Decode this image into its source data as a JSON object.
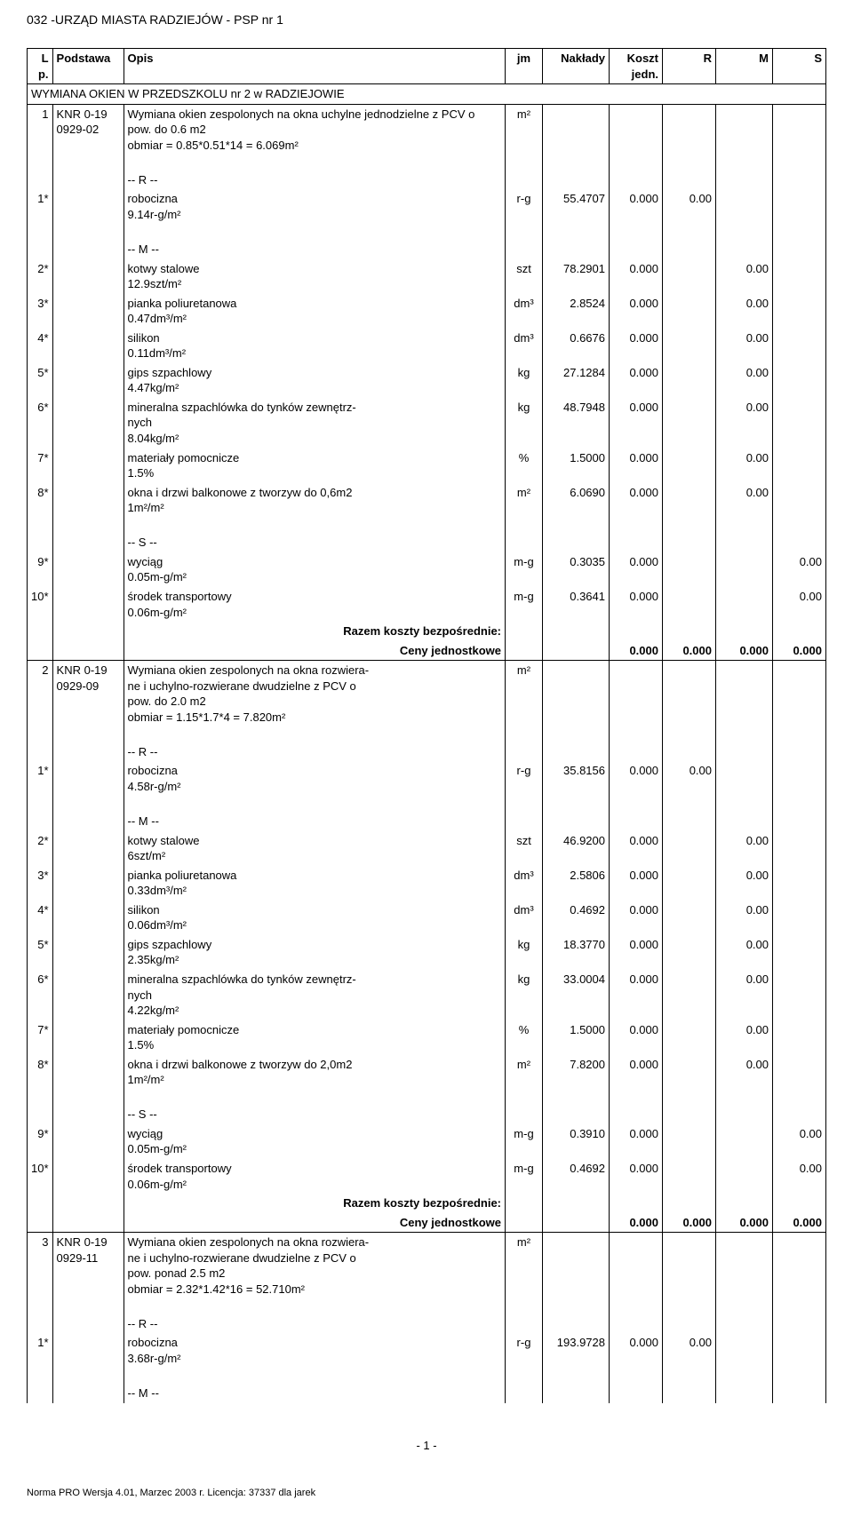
{
  "header": "032 -URZĄD MIASTA RADZIEJÓW - PSP nr 1",
  "columns": {
    "lp": "L p.",
    "podstawa": "Podstawa",
    "opis": "Opis",
    "jm": "jm",
    "naklady": "Nakłady",
    "koszt": "Koszt jedn.",
    "r": "R",
    "m": "M",
    "s": "S"
  },
  "section_title": "WYMIANA OKIEN W PRZEDSZKOLU nr 2 w RADZIEJOWIE",
  "items": [
    {
      "lp": "1",
      "podstawa": "KNR 0-19 0929-02",
      "opis": "Wymiana okien zespolonych na okna uchylne jednodzielne z PCV o pow. do 0.6 m2\nobmiar = 0.85*0.51*14 = 6.069m²",
      "jm": "m²",
      "rows": [
        {
          "sep": "-- R --"
        },
        {
          "lp": "1*",
          "opis": "robocizna\n9.14r-g/m²",
          "jm": "r-g",
          "naklady": "55.4707",
          "koszt": "0.000",
          "r": "0.00"
        },
        {
          "sep": "-- M --"
        },
        {
          "lp": "2*",
          "opis": "kotwy stalowe\n12.9szt/m²",
          "jm": "szt",
          "naklady": "78.2901",
          "koszt": "0.000",
          "m": "0.00"
        },
        {
          "lp": "3*",
          "opis": "pianka poliuretanowa\n0.47dm³/m²",
          "jm": "dm³",
          "naklady": "2.8524",
          "koszt": "0.000",
          "m": "0.00"
        },
        {
          "lp": "4*",
          "opis": "silikon\n0.11dm³/m²",
          "jm": "dm³",
          "naklady": "0.6676",
          "koszt": "0.000",
          "m": "0.00"
        },
        {
          "lp": "5*",
          "opis": "gips szpachlowy\n4.47kg/m²",
          "jm": "kg",
          "naklady": "27.1284",
          "koszt": "0.000",
          "m": "0.00"
        },
        {
          "lp": "6*",
          "opis": "mineralna szpachlówka do tynków zewnętrz-\nnych\n8.04kg/m²",
          "jm": "kg",
          "naklady": "48.7948",
          "koszt": "0.000",
          "m": "0.00"
        },
        {
          "lp": "7*",
          "opis": "materiały pomocnicze\n1.5%",
          "jm": "%",
          "naklady": "1.5000",
          "koszt": "0.000",
          "m": "0.00"
        },
        {
          "lp": "8*",
          "opis": "okna i drzwi balkonowe z tworzyw do 0,6m2\n1m²/m²",
          "jm": "m²",
          "naklady": "6.0690",
          "koszt": "0.000",
          "m": "0.00"
        },
        {
          "sep": "-- S --"
        },
        {
          "lp": "9*",
          "opis": "wyciąg\n0.05m-g/m²",
          "jm": "m-g",
          "naklady": "0.3035",
          "koszt": "0.000",
          "s": "0.00"
        },
        {
          "lp": "10*",
          "opis": "środek transportowy\n0.06m-g/m²",
          "jm": "m-g",
          "naklady": "0.3641",
          "koszt": "0.000",
          "s": "0.00"
        }
      ],
      "razem_label": "Razem koszty bezpośrednie:",
      "ceny_label": "Ceny jednostkowe",
      "ceny": {
        "koszt": "0.000",
        "r": "0.000",
        "m": "0.000",
        "s": "0.000"
      }
    },
    {
      "lp": "2",
      "podstawa": "KNR 0-19 0929-09",
      "opis": "Wymiana okien zespolonych na okna rozwiera-\nne i uchylno-rozwierane dwudzielne z PCV o\npow. do 2.0 m2\nobmiar = 1.15*1.7*4 = 7.820m²",
      "jm": "m²",
      "rows": [
        {
          "sep": "-- R --"
        },
        {
          "lp": "1*",
          "opis": "robocizna\n4.58r-g/m²",
          "jm": "r-g",
          "naklady": "35.8156",
          "koszt": "0.000",
          "r": "0.00"
        },
        {
          "sep": "-- M --"
        },
        {
          "lp": "2*",
          "opis": "kotwy stalowe\n6szt/m²",
          "jm": "szt",
          "naklady": "46.9200",
          "koszt": "0.000",
          "m": "0.00"
        },
        {
          "lp": "3*",
          "opis": "pianka poliuretanowa\n0.33dm³/m²",
          "jm": "dm³",
          "naklady": "2.5806",
          "koszt": "0.000",
          "m": "0.00"
        },
        {
          "lp": "4*",
          "opis": "silikon\n0.06dm³/m²",
          "jm": "dm³",
          "naklady": "0.4692",
          "koszt": "0.000",
          "m": "0.00"
        },
        {
          "lp": "5*",
          "opis": "gips szpachlowy\n2.35kg/m²",
          "jm": "kg",
          "naklady": "18.3770",
          "koszt": "0.000",
          "m": "0.00"
        },
        {
          "lp": "6*",
          "opis": "mineralna szpachlówka do tynków zewnętrz-\nnych\n4.22kg/m²",
          "jm": "kg",
          "naklady": "33.0004",
          "koszt": "0.000",
          "m": "0.00"
        },
        {
          "lp": "7*",
          "opis": "materiały pomocnicze\n1.5%",
          "jm": "%",
          "naklady": "1.5000",
          "koszt": "0.000",
          "m": "0.00"
        },
        {
          "lp": "8*",
          "opis": "okna i drzwi balkonowe z tworzyw do 2,0m2\n1m²/m²",
          "jm": "m²",
          "naklady": "7.8200",
          "koszt": "0.000",
          "m": "0.00"
        },
        {
          "sep": "-- S --"
        },
        {
          "lp": "9*",
          "opis": "wyciąg\n0.05m-g/m²",
          "jm": "m-g",
          "naklady": "0.3910",
          "koszt": "0.000",
          "s": "0.00"
        },
        {
          "lp": "10*",
          "opis": "środek transportowy\n0.06m-g/m²",
          "jm": "m-g",
          "naklady": "0.4692",
          "koszt": "0.000",
          "s": "0.00"
        }
      ],
      "razem_label": "Razem koszty bezpośrednie:",
      "ceny_label": "Ceny jednostkowe",
      "ceny": {
        "koszt": "0.000",
        "r": "0.000",
        "m": "0.000",
        "s": "0.000"
      }
    },
    {
      "lp": "3",
      "podstawa": "KNR 0-19 0929-11",
      "opis": "Wymiana okien zespolonych na okna rozwiera-\nne i uchylno-rozwierane dwudzielne z PCV o\npow. ponad 2.5 m2\nobmiar = 2.32*1.42*16 = 52.710m²",
      "jm": "m²",
      "rows": [
        {
          "sep": "-- R --"
        },
        {
          "lp": "1*",
          "opis": "robocizna\n3.68r-g/m²",
          "jm": "r-g",
          "naklady": "193.9728",
          "koszt": "0.000",
          "r": "0.00"
        },
        {
          "sep": "-- M --"
        }
      ]
    }
  ],
  "page_num": "- 1 -",
  "footer": "Norma PRO Wersja 4.01, Marzec 2003 r. Licencja: 37337 dla jarek"
}
